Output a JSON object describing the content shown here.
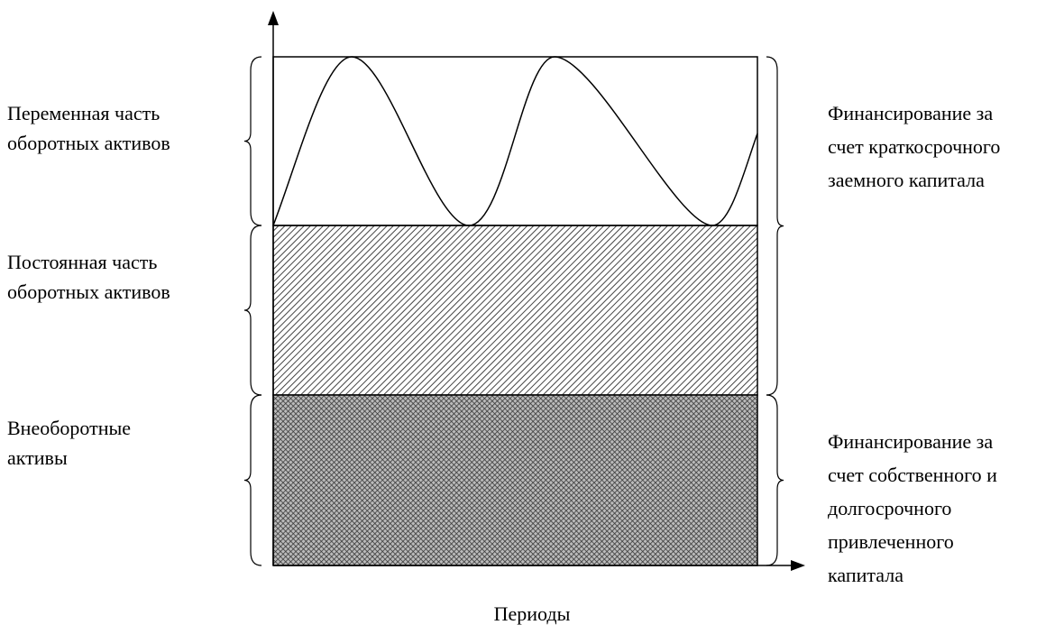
{
  "left_labels": [
    {
      "lines": [
        "Переменная часть",
        "оборотных активов"
      ]
    },
    {
      "lines": [
        "Постоянная часть",
        "оборотных активов"
      ]
    },
    {
      "lines": [
        "Внеоборотные",
        "активы"
      ]
    }
  ],
  "right_labels": [
    {
      "lines": [
        "Финансирование за",
        "счет краткосрочного",
        "заемного капитала"
      ]
    },
    {
      "lines": [
        "Финансирование за",
        "счет собственного и",
        "долгосрочного",
        "привлеченного",
        "капитала"
      ]
    }
  ],
  "x_axis_label": "Периоды"
}
